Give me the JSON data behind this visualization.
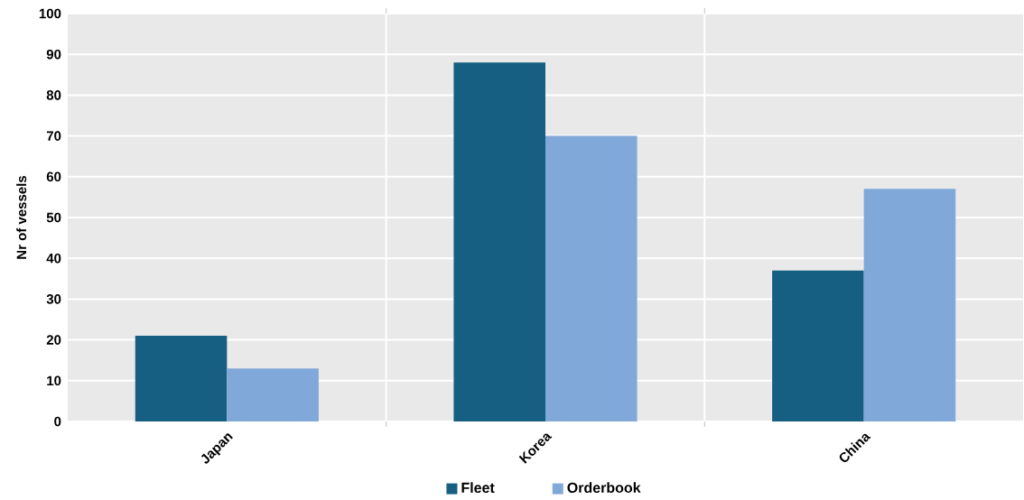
{
  "chart_data": {
    "type": "bar",
    "ylabel": "Nr of vessels",
    "categories": [
      "Japan",
      "Korea",
      "China"
    ],
    "series": [
      {
        "name": "Fleet",
        "color": "#175f82",
        "values": [
          21,
          88,
          37
        ]
      },
      {
        "name": "Orderbook",
        "color": "#80a8d9",
        "values": [
          13,
          70,
          57
        ]
      }
    ],
    "ylim": [
      0,
      100
    ],
    "yticks": [
      0,
      10,
      20,
      30,
      40,
      50,
      60,
      70,
      80,
      90,
      100
    ],
    "grid": true,
    "legend": "bottom"
  }
}
